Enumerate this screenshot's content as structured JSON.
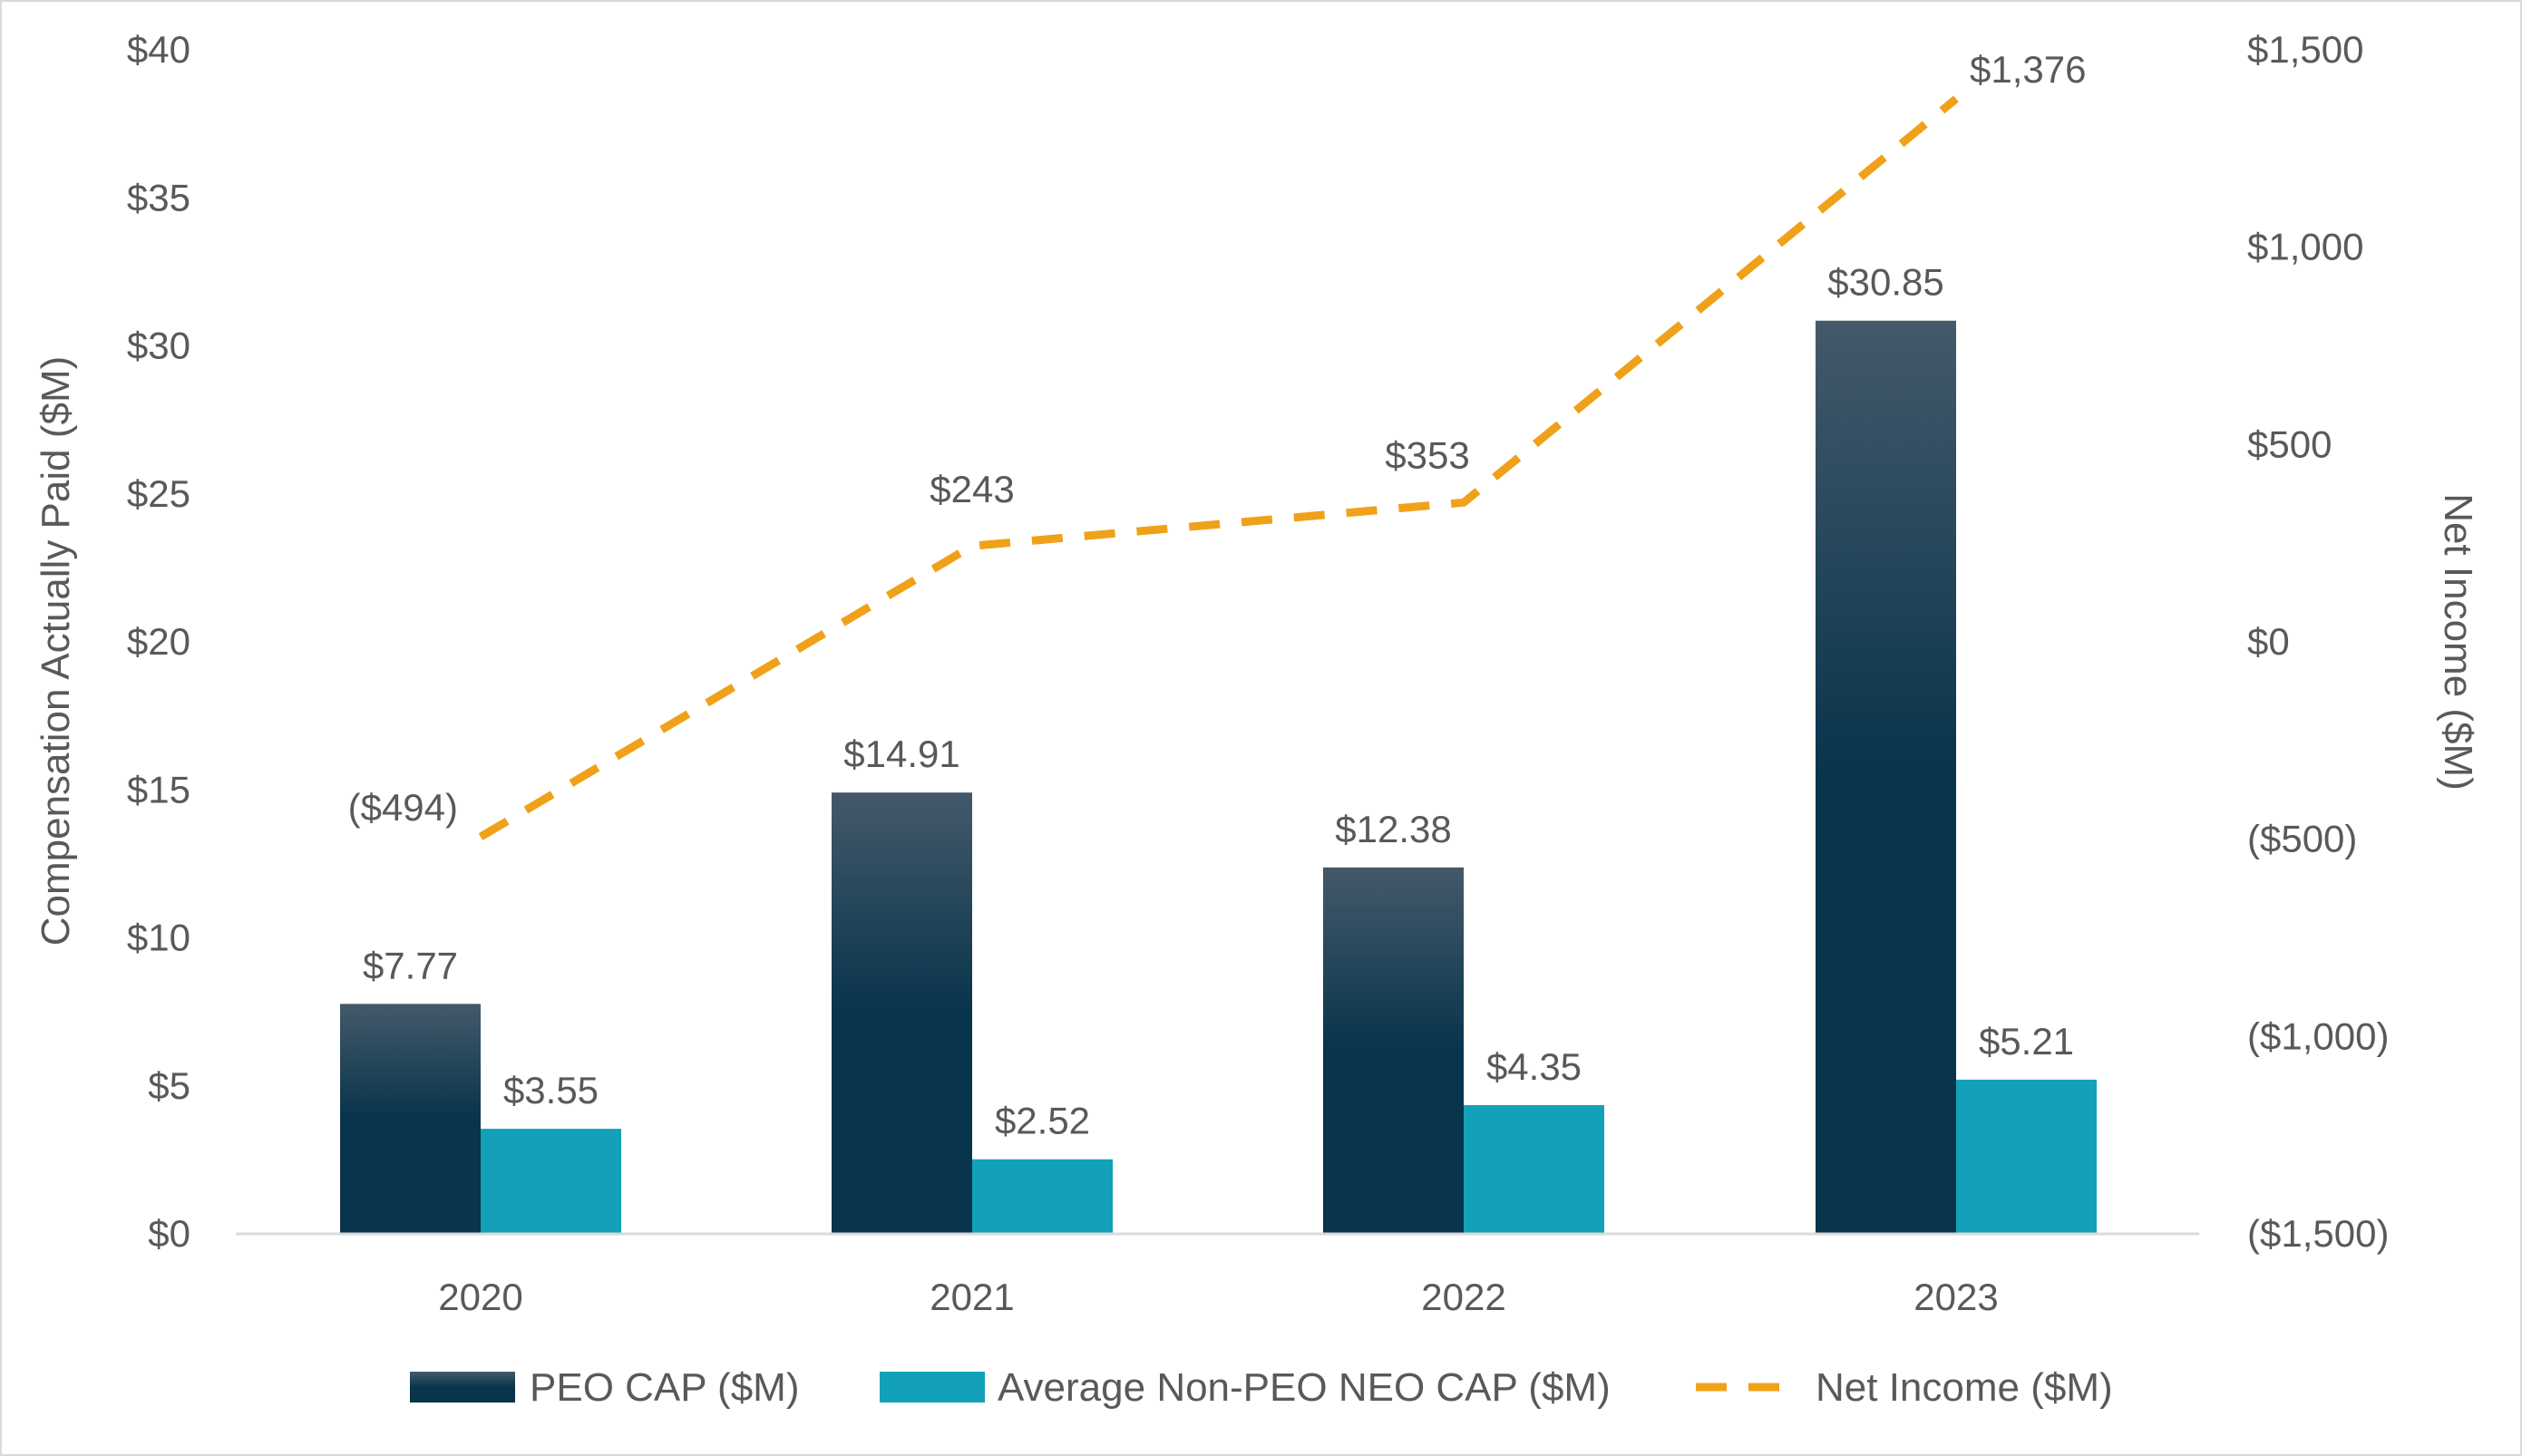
{
  "chart_data": {
    "type": "bar",
    "categories": [
      "2020",
      "2021",
      "2022",
      "2023"
    ],
    "series": [
      {
        "name": "PEO CAP ($M)",
        "type": "bar",
        "axis": "left",
        "values": [
          7.77,
          14.91,
          12.38,
          30.85
        ],
        "labels": [
          "$7.77",
          "$14.91",
          "$12.38",
          "$30.85"
        ],
        "color_top": "#44596a",
        "color_bottom": "#08344c"
      },
      {
        "name": "Average Non-PEO NEO CAP ($M)",
        "type": "bar",
        "axis": "left",
        "values": [
          3.55,
          2.52,
          4.35,
          5.21
        ],
        "labels": [
          "$3.55",
          "$2.52",
          "$4.35",
          "$5.21"
        ],
        "color": "#12a1b8"
      },
      {
        "name": "Net Income ($M)",
        "type": "line",
        "style": "dashed",
        "axis": "right",
        "values": [
          -494,
          243,
          353,
          1376
        ],
        "labels": [
          "($494)",
          "$243",
          "$353",
          "$1,376"
        ],
        "color": "#f0a11a"
      }
    ],
    "y_left": {
      "label": "Compensation Actually Paid ($M)",
      "range": [
        0,
        40
      ],
      "ticks": [
        0,
        5,
        10,
        15,
        20,
        25,
        30,
        35,
        40
      ],
      "tick_labels": [
        "$0",
        "$5",
        "$10",
        "$15",
        "$20",
        "$25",
        "$30",
        "$35",
        "$40"
      ]
    },
    "y_right": {
      "label": "Net Income ($M)",
      "range": [
        -1500,
        1500
      ],
      "ticks": [
        -1500,
        -1000,
        -500,
        0,
        500,
        1000,
        1500
      ],
      "tick_labels": [
        "($1,500)",
        "($1,000)",
        "($500)",
        "$0",
        "$500",
        "$1,000",
        "$1,500"
      ]
    },
    "legend": {
      "position": "bottom",
      "items": [
        "PEO CAP ($M)",
        "Average Non-PEO NEO CAP ($M)",
        "Net Income ($M)"
      ]
    },
    "grid": false,
    "colors": {
      "text": "#595959",
      "axis_line": "#d9d9d9",
      "frame": "#d9d9d9"
    }
  }
}
